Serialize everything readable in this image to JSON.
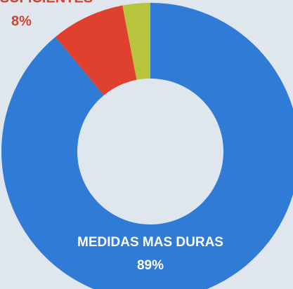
{
  "chart_data": {
    "type": "donut",
    "categories": [
      "MEDIDAS MAS DURAS",
      "SUFICIENTES",
      null
    ],
    "values": [
      89,
      8,
      3
    ],
    "value_labels": [
      "89%",
      "8%",
      null
    ],
    "colors": [
      "#2f7bd6",
      "#e0412e",
      "#b8c43c"
    ]
  }
}
